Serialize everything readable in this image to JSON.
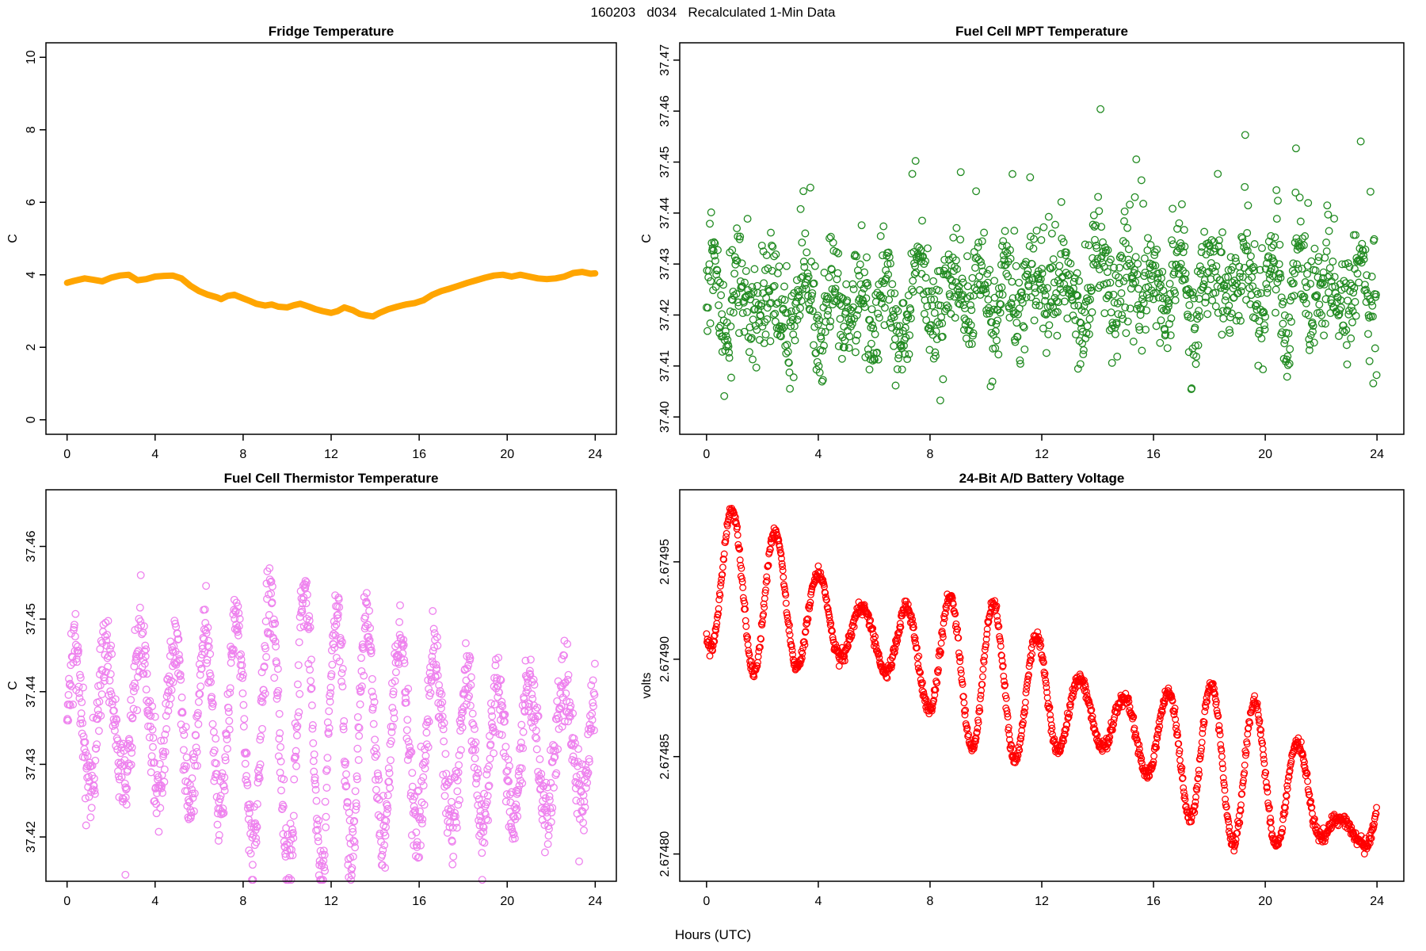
{
  "page": {
    "title": "160203   d034   Recalculated 1-Min Data",
    "xlabel": "Hours (UTC)",
    "background": "#FFFFFF",
    "axis_color": "#000000"
  },
  "layout_hints": {
    "grid": "2x2",
    "frame_box": true,
    "legend": "none",
    "y_tick_label_rotation": -90,
    "x_range_hours": [
      0,
      24
    ]
  },
  "chart_data": [
    {
      "id": "fridge-temperature",
      "type": "line",
      "title": "Fridge Temperature",
      "ylabel": "C",
      "color": "#FFA500",
      "line_width": 8,
      "xticks": [
        0,
        4,
        8,
        12,
        16,
        20,
        24
      ],
      "xtick_labels": [
        "0",
        "4",
        "8",
        "12",
        "16",
        "20",
        "24"
      ],
      "yticks": [
        0,
        2,
        4,
        6,
        8,
        10
      ],
      "ytick_labels": [
        "0",
        "2",
        "4",
        "6",
        "8",
        "10"
      ],
      "xlim": [
        -0.96,
        24.96
      ],
      "ylim": [
        -0.4,
        10.4
      ],
      "points": [
        [
          0,
          3.78
        ],
        [
          0.3,
          3.83
        ],
        [
          0.8,
          3.9
        ],
        [
          1.2,
          3.86
        ],
        [
          1.6,
          3.82
        ],
        [
          2.0,
          3.92
        ],
        [
          2.4,
          3.98
        ],
        [
          2.8,
          4.0
        ],
        [
          3.2,
          3.85
        ],
        [
          3.6,
          3.88
        ],
        [
          4.0,
          3.95
        ],
        [
          4.4,
          3.97
        ],
        [
          4.8,
          3.98
        ],
        [
          5.2,
          3.9
        ],
        [
          5.6,
          3.7
        ],
        [
          6.0,
          3.55
        ],
        [
          6.4,
          3.45
        ],
        [
          6.8,
          3.38
        ],
        [
          7.0,
          3.33
        ],
        [
          7.3,
          3.42
        ],
        [
          7.6,
          3.45
        ],
        [
          8.0,
          3.35
        ],
        [
          8.3,
          3.28
        ],
        [
          8.6,
          3.2
        ],
        [
          9.0,
          3.15
        ],
        [
          9.3,
          3.18
        ],
        [
          9.6,
          3.12
        ],
        [
          10.0,
          3.1
        ],
        [
          10.3,
          3.16
        ],
        [
          10.6,
          3.2
        ],
        [
          11.0,
          3.12
        ],
        [
          11.3,
          3.05
        ],
        [
          11.6,
          3.0
        ],
        [
          12.0,
          2.95
        ],
        [
          12.3,
          3.0
        ],
        [
          12.6,
          3.1
        ],
        [
          13.0,
          3.02
        ],
        [
          13.3,
          2.92
        ],
        [
          13.6,
          2.88
        ],
        [
          13.9,
          2.85
        ],
        [
          14.2,
          2.95
        ],
        [
          14.6,
          3.05
        ],
        [
          15.0,
          3.12
        ],
        [
          15.4,
          3.18
        ],
        [
          15.8,
          3.22
        ],
        [
          16.2,
          3.3
        ],
        [
          16.6,
          3.45
        ],
        [
          17.0,
          3.55
        ],
        [
          17.4,
          3.62
        ],
        [
          17.8,
          3.7
        ],
        [
          18.2,
          3.78
        ],
        [
          18.6,
          3.85
        ],
        [
          19.0,
          3.92
        ],
        [
          19.4,
          3.98
        ],
        [
          19.8,
          4.0
        ],
        [
          20.2,
          3.95
        ],
        [
          20.6,
          4.0
        ],
        [
          21.0,
          3.95
        ],
        [
          21.4,
          3.9
        ],
        [
          21.8,
          3.88
        ],
        [
          22.2,
          3.9
        ],
        [
          22.6,
          3.95
        ],
        [
          23.0,
          4.05
        ],
        [
          23.4,
          4.08
        ],
        [
          23.8,
          4.03
        ],
        [
          24,
          4.04
        ]
      ]
    },
    {
      "id": "fuel-cell-mpt-temperature",
      "type": "scatter",
      "title": "Fuel Cell MPT Temperature",
      "ylabel": "C",
      "color": "#228B22",
      "marker": "open-circle",
      "marker_radius": 4.3,
      "xticks": [
        0,
        4,
        8,
        12,
        16,
        20,
        24
      ],
      "xtick_labels": [
        "0",
        "4",
        "8",
        "12",
        "16",
        "20",
        "24"
      ],
      "yticks": [
        37.4,
        37.41,
        37.42,
        37.43,
        37.44,
        37.45,
        37.46,
        37.47
      ],
      "ytick_labels": [
        "37.40",
        "37.41",
        "37.42",
        "37.43",
        "37.44",
        "37.45",
        "37.46",
        "37.47"
      ],
      "xlim": [
        -0.96,
        24.96
      ],
      "ylim": [
        37.3966,
        37.4734
      ],
      "generator": {
        "kind": "band-oscillation",
        "n": 1440,
        "seed": 20160203,
        "base": 37.4235,
        "day_amp": 0.0022,
        "day_period": 24,
        "day_phase": 3.6,
        "osc_amp": 0.0085,
        "osc_period": 1.05,
        "mod_min": 0.3,
        "mod_period": 3.4,
        "phase_wobble": 0.9,
        "phase_wobble_period": 5.2,
        "noise_sd": 0.0048,
        "spike_prob": 0.05,
        "spike_max": 0.024,
        "late_start": 15,
        "late_bonus": 0.008,
        "clip": [
          37.3995,
          37.4715
        ]
      }
    },
    {
      "id": "fuel-cell-thermistor-temperature",
      "type": "scatter",
      "title": "Fuel Cell Thermistor Temperature",
      "ylabel": "C",
      "color": "#EE82EE",
      "marker": "open-circle",
      "marker_radius": 4.3,
      "xticks": [
        0,
        4,
        8,
        12,
        16,
        20,
        24
      ],
      "xtick_labels": [
        "0",
        "4",
        "8",
        "12",
        "16",
        "20",
        "24"
      ],
      "yticks": [
        37.42,
        37.43,
        37.44,
        37.45,
        37.46
      ],
      "ytick_labels": [
        "37.42",
        "37.43",
        "37.44",
        "37.45",
        "37.46"
      ],
      "xlim": [
        -0.96,
        24.96
      ],
      "ylim": [
        37.4139,
        37.4678
      ],
      "generator": {
        "kind": "envelope-oscillation",
        "n": 1440,
        "seed": 160203,
        "center": 37.4352,
        "day_amp": 0.0012,
        "day_period": 24,
        "day_phase": 0.8,
        "late_drop": 0.0028,
        "late_start": 16,
        "late_ramp": 2,
        "env_base": 0.0095,
        "env_peak": 0.0095,
        "env_center": 11.2,
        "env_width": 4.6,
        "period": 1.48,
        "phase_wobble": 0.35,
        "phase_wobble_period": 6.3,
        "noise_sd": 0.0027,
        "clip": [
          37.4141,
          37.465
        ],
        "outliers": [
          [
            2.65,
            37.4148
          ]
        ]
      }
    },
    {
      "id": "battery-voltage",
      "type": "scatter",
      "title": "24-Bit A/D Battery Voltage",
      "ylabel": "volts",
      "color": "#FF0000",
      "marker": "open-circle",
      "marker_radius": 3.8,
      "xticks": [
        0,
        4,
        8,
        12,
        16,
        20,
        24
      ],
      "xtick_labels": [
        "0",
        "4",
        "8",
        "12",
        "16",
        "20",
        "24"
      ],
      "yticks": [
        2.6748,
        2.67485,
        2.6749,
        2.67495
      ],
      "ytick_labels": [
        "2.67480",
        "2.67485",
        "2.67490",
        "2.67495"
      ],
      "xlim": [
        -0.96,
        24.96
      ],
      "ylim": [
        2.674786,
        2.674987
      ],
      "generator": {
        "kind": "trend-oscillation",
        "n": 1440,
        "seed": 34,
        "start": 2.674942,
        "end": 2.674818,
        "amp_base": 2.7e-05,
        "amp_mod": 1.3e-05,
        "amp_mod_period": 8.7,
        "amp_mod_phase": 0.6,
        "period": 1.56,
        "phase": -2.1,
        "noise_sd": 1.6e-06,
        "dip_center": 22.75,
        "dip_width": 0.5,
        "dip_depth": 2.1e-05,
        "clip": [
          2.67479,
          2.674982
        ]
      }
    }
  ]
}
